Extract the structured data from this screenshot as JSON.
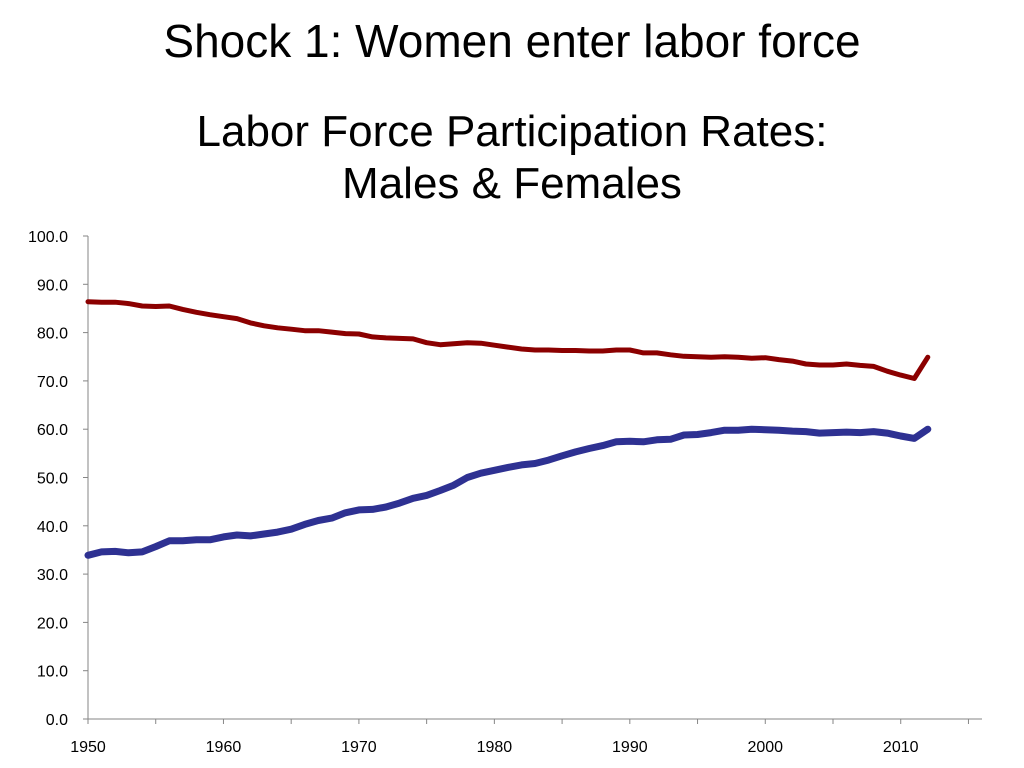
{
  "slide": {
    "title": "Shock 1: Women enter labor force"
  },
  "chart_data": {
    "type": "line",
    "title_lines": [
      "Labor Force Participation Rates:",
      "Males & Females"
    ],
    "xlabel": "",
    "ylabel": "",
    "xlim": [
      1950,
      2016
    ],
    "ylim": [
      0,
      100
    ],
    "x_ticks": [
      "1950",
      "1960",
      "1970",
      "1980",
      "1990",
      "2000",
      "2010"
    ],
    "y_ticks": [
      "0.0",
      "10.0",
      "20.0",
      "30.0",
      "40.0",
      "50.0",
      "60.0",
      "70.0",
      "80.0",
      "90.0",
      "100.0"
    ],
    "grid": false,
    "legend": "none",
    "x": [
      1950,
      1951,
      1952,
      1953,
      1954,
      1955,
      1956,
      1957,
      1958,
      1959,
      1960,
      1961,
      1962,
      1963,
      1964,
      1965,
      1966,
      1967,
      1968,
      1969,
      1970,
      1971,
      1972,
      1973,
      1974,
      1975,
      1976,
      1977,
      1978,
      1979,
      1980,
      1981,
      1982,
      1983,
      1984,
      1985,
      1986,
      1987,
      1988,
      1989,
      1990,
      1991,
      1992,
      1993,
      1994,
      1995,
      1996,
      1997,
      1998,
      1999,
      2000,
      2001,
      2002,
      2003,
      2004,
      2005,
      2006,
      2007,
      2008,
      2009,
      2010,
      2011,
      2012
    ],
    "series": [
      {
        "color": "#8b0000",
        "values": [
          86.4,
          86.3,
          86.3,
          86.0,
          85.5,
          85.4,
          85.5,
          84.8,
          84.2,
          83.7,
          83.3,
          82.9,
          82.0,
          81.4,
          81.0,
          80.7,
          80.4,
          80.4,
          80.1,
          79.8,
          79.7,
          79.1,
          78.9,
          78.8,
          78.7,
          77.9,
          77.5,
          77.7,
          77.9,
          77.8,
          77.4,
          77.0,
          76.6,
          76.4,
          76.4,
          76.3,
          76.3,
          76.2,
          76.2,
          76.4,
          76.4,
          75.8,
          75.8,
          75.4,
          75.1,
          75.0,
          74.9,
          75.0,
          74.9,
          74.7,
          74.8,
          74.4,
          74.1,
          73.5,
          73.3,
          73.3,
          73.5,
          73.2,
          73.0,
          72.0,
          71.2,
          70.5,
          74.9
        ]
      },
      {
        "color": "#2e3192",
        "values": [
          33.9,
          34.6,
          34.7,
          34.4,
          34.6,
          35.7,
          36.9,
          36.9,
          37.1,
          37.1,
          37.7,
          38.1,
          37.9,
          38.3,
          38.7,
          39.3,
          40.3,
          41.1,
          41.6,
          42.7,
          43.3,
          43.4,
          43.9,
          44.7,
          45.7,
          46.3,
          47.3,
          48.4,
          50.0,
          50.9,
          51.5,
          52.1,
          52.6,
          52.9,
          53.6,
          54.5,
          55.3,
          56.0,
          56.6,
          57.4,
          57.5,
          57.4,
          57.8,
          57.9,
          58.8,
          58.9,
          59.3,
          59.8,
          59.8,
          60.0,
          59.9,
          59.8,
          59.6,
          59.5,
          59.2,
          59.3,
          59.4,
          59.3,
          59.5,
          59.2,
          58.6,
          58.1,
          60.0
        ]
      }
    ]
  }
}
